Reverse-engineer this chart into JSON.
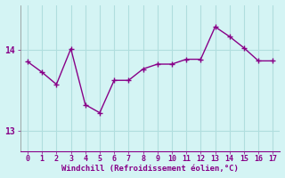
{
  "x": [
    0,
    1,
    2,
    3,
    4,
    5,
    6,
    7,
    8,
    9,
    10,
    11,
    12,
    13,
    14,
    15,
    16,
    17
  ],
  "y": [
    13.85,
    13.72,
    13.57,
    14.01,
    13.32,
    13.22,
    13.62,
    13.62,
    13.76,
    13.82,
    13.82,
    13.88,
    13.88,
    14.28,
    14.16,
    14.02,
    13.86,
    13.86
  ],
  "line_color": "#880088",
  "marker": "+",
  "marker_size": 4,
  "marker_linewidth": 1.0,
  "bg_color": "#d4f4f4",
  "grid_color": "#b0dede",
  "xlabel": "Windchill (Refroidissement éolien,°C)",
  "xlabel_color": "#880088",
  "tick_color": "#880088",
  "ylim": [
    12.75,
    14.55
  ],
  "xlim": [
    -0.5,
    17.5
  ],
  "yticks": [
    13,
    14
  ],
  "xticks": [
    0,
    1,
    2,
    3,
    4,
    5,
    6,
    7,
    8,
    9,
    10,
    11,
    12,
    13,
    14,
    15,
    16,
    17
  ],
  "linewidth": 1.0,
  "linestyle": "-"
}
